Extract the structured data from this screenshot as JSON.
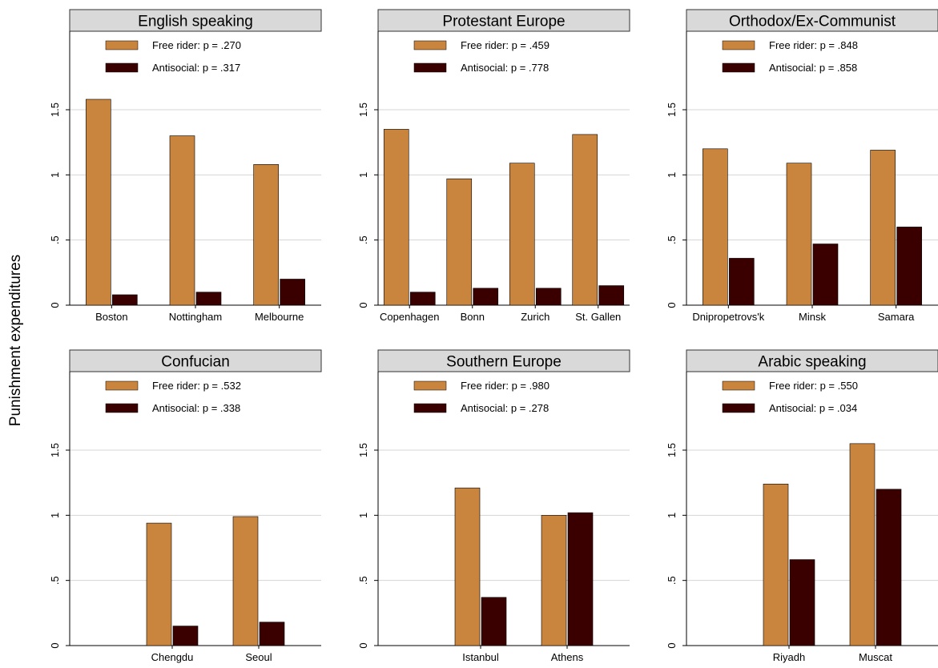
{
  "ylabel": "Punishment expenditures",
  "colors": {
    "free_rider": "#c9843e",
    "antisocial": "#3a0000",
    "header_bg": "#d9d9d9",
    "grid": "#d4d4d4"
  },
  "chart_data": [
    {
      "type": "bar",
      "title": "English speaking",
      "categories": [
        "Boston",
        "Nottingham",
        "Melbourne"
      ],
      "series": [
        {
          "name": "Free rider: p = .270",
          "values": [
            1.58,
            1.3,
            1.08
          ]
        },
        {
          "name": "Antisocial: p = .317",
          "values": [
            0.08,
            0.1,
            0.2
          ]
        }
      ],
      "yticks": [
        "0",
        ".5",
        "1",
        "1.5"
      ],
      "ylim": [
        0,
        2.2
      ],
      "grid": true,
      "legend": "top"
    },
    {
      "type": "bar",
      "title": "Protestant Europe",
      "categories": [
        "Copenhagen",
        "Bonn",
        "Zurich",
        "St. Gallen"
      ],
      "series": [
        {
          "name": "Free rider: p = .459",
          "values": [
            1.35,
            0.97,
            1.09,
            1.31
          ]
        },
        {
          "name": "Antisocial: p = .778",
          "values": [
            0.1,
            0.13,
            0.13,
            0.15
          ]
        }
      ],
      "yticks": [
        "0",
        ".5",
        "1",
        "1.5"
      ],
      "ylim": [
        0,
        2.2
      ],
      "grid": true,
      "legend": "top"
    },
    {
      "type": "bar",
      "title": "Orthodox/Ex-Communist",
      "categories": [
        "Dnipropetrovs'k",
        "Minsk",
        "Samara"
      ],
      "series": [
        {
          "name": "Free rider: p = .848",
          "values": [
            1.2,
            1.09,
            1.19
          ]
        },
        {
          "name": "Antisocial: p = .858",
          "values": [
            0.36,
            0.47,
            0.6
          ]
        }
      ],
      "yticks": [
        "0",
        ".5",
        "1",
        "1.5"
      ],
      "ylim": [
        0,
        2.2
      ],
      "grid": true,
      "legend": "top"
    },
    {
      "type": "bar",
      "title": "Confucian",
      "categories": [
        "Chengdu",
        "Seoul"
      ],
      "series": [
        {
          "name": "Free rider: p = .532",
          "values": [
            0.94,
            0.99
          ]
        },
        {
          "name": "Antisocial: p = .338",
          "values": [
            0.15,
            0.18
          ]
        }
      ],
      "yticks": [
        "0",
        ".5",
        "1",
        "1.5"
      ],
      "ylim": [
        0,
        2.2
      ],
      "grid": true,
      "legend": "top"
    },
    {
      "type": "bar",
      "title": "Southern Europe",
      "categories": [
        "Istanbul",
        "Athens"
      ],
      "series": [
        {
          "name": "Free rider: p = .980",
          "values": [
            1.21,
            1.0
          ]
        },
        {
          "name": "Antisocial: p = .278",
          "values": [
            0.37,
            1.02
          ]
        }
      ],
      "yticks": [
        "0",
        ".5",
        "1",
        "1.5"
      ],
      "ylim": [
        0,
        2.2
      ],
      "grid": true,
      "legend": "top"
    },
    {
      "type": "bar",
      "title": "Arabic speaking",
      "categories": [
        "Riyadh",
        "Muscat"
      ],
      "series": [
        {
          "name": "Free rider: p = .550",
          "values": [
            1.24,
            1.55
          ]
        },
        {
          "name": "Antisocial: p = .034",
          "values": [
            0.66,
            1.2
          ]
        }
      ],
      "yticks": [
        "0",
        ".5",
        "1",
        "1.5"
      ],
      "ylim": [
        0,
        2.2
      ],
      "grid": true,
      "legend": "top"
    }
  ]
}
